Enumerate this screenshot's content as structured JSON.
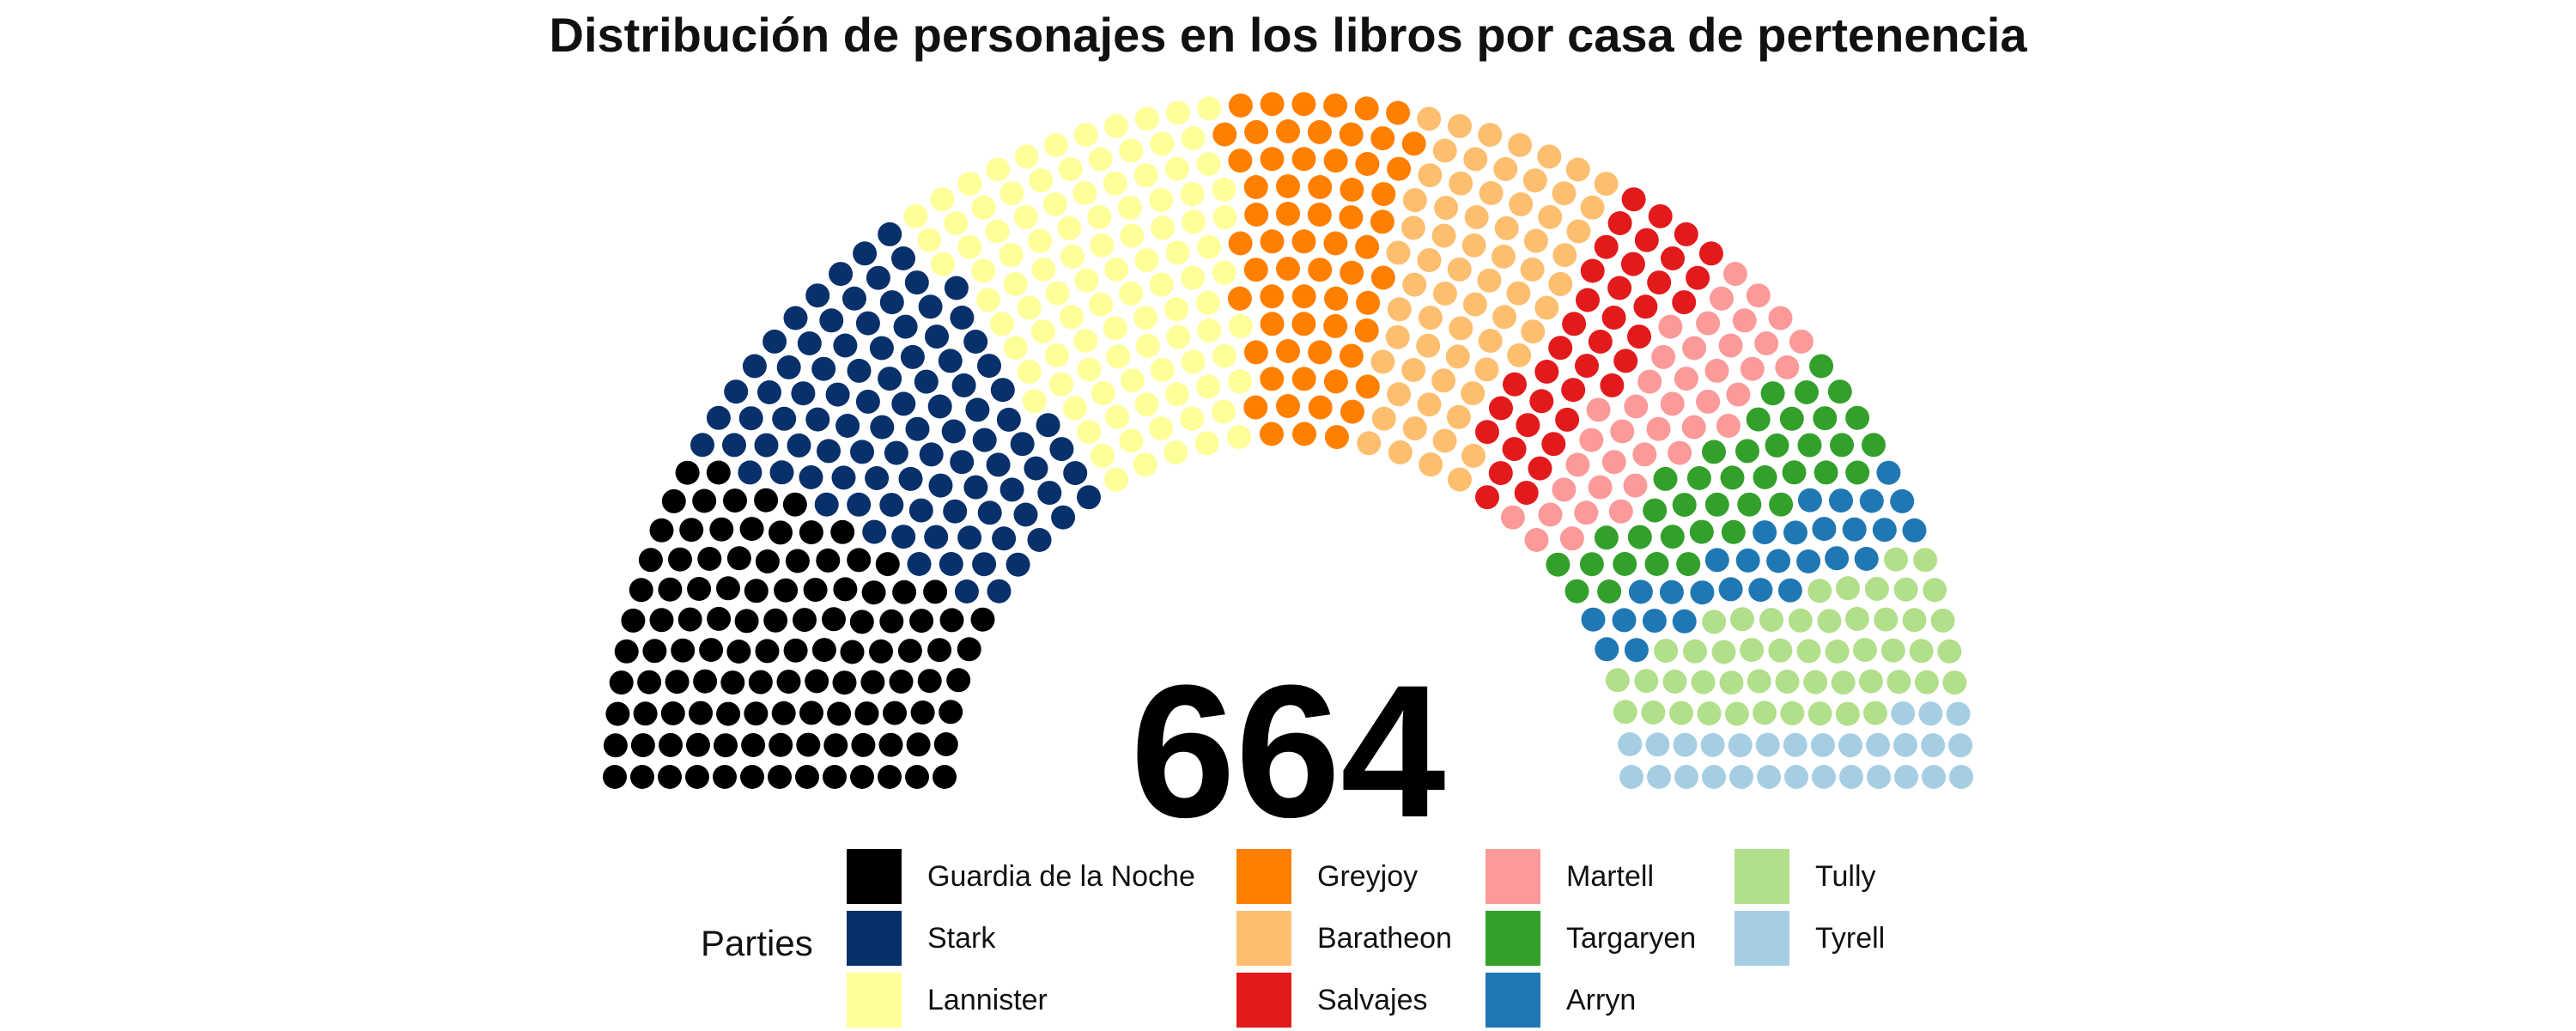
{
  "chart_data": {
    "type": "parliament",
    "title": "Distribución de personajes en los libros por casa de pertenencia",
    "total": "664",
    "legend_title": "Parties",
    "legend_placement": "bottom",
    "series": [
      {
        "name": "Guardia de la Noche",
        "value": 112,
        "color": "#000000"
      },
      {
        "name": "Stark",
        "value": 97,
        "color": "#08306B"
      },
      {
        "name": "Lannister",
        "value": 102,
        "color": "#FFFF99"
      },
      {
        "name": "Greyjoy",
        "value": 63,
        "color": "#FF7F00"
      },
      {
        "name": "Baratheon",
        "value": 66,
        "color": "#FDBF6F"
      },
      {
        "name": "Salvajes",
        "value": 38,
        "color": "#E31A1C"
      },
      {
        "name": "Martell",
        "value": 40,
        "color": "#FB9A99"
      },
      {
        "name": "Targaryen",
        "value": 38,
        "color": "#33A02C"
      },
      {
        "name": "Arryn",
        "value": 29,
        "color": "#1F78B4"
      },
      {
        "name": "Tully",
        "value": 50,
        "color": "#B2DF8A"
      },
      {
        "name": "Tyrell",
        "value": 29,
        "color": "#A6CEE3"
      }
    ]
  }
}
